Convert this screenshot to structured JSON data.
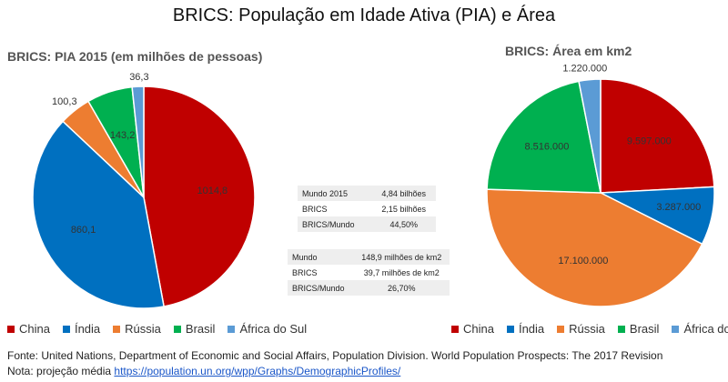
{
  "title": "BRICS: População em Idade Ativa (PIA) e Área",
  "colors": {
    "China": "#c00000",
    "Índia": "#0070c0",
    "Rússia": "#ed7d31",
    "Brasil": "#00b050",
    "África do Sul": "#5b9bd5"
  },
  "chart_data": [
    {
      "type": "pie",
      "title": "BRICS: PIA 2015 (em milhões de pessoas)",
      "categories": [
        "China",
        "Índia",
        "Rússia",
        "Brasil",
        "África do Sul"
      ],
      "values": [
        1014.8,
        860.1,
        100.3,
        143.2,
        36.3
      ],
      "labels": [
        "1014,8",
        "860,1",
        "100,3",
        "143,2",
        "36,3"
      ],
      "legend": "bottom"
    },
    {
      "type": "pie",
      "title": "BRICS: Área em km2",
      "categories": [
        "China",
        "Índia",
        "Rússia",
        "Brasil",
        "África do Sul"
      ],
      "values": [
        9597000,
        3287000,
        17100000,
        8516000,
        1220000
      ],
      "labels": [
        "9.597.000",
        "3.287.000",
        "17.100.000",
        "8.516.000",
        "1.220.000"
      ],
      "legend": "bottom"
    }
  ],
  "table_population": [
    {
      "label": "Mundo 2015",
      "value": "4,84 bilhões"
    },
    {
      "label": "BRICS",
      "value": "2,15 bilhões"
    },
    {
      "label": "BRICS/Mundo",
      "value": "44,50%"
    }
  ],
  "table_area": [
    {
      "label": "Mundo",
      "value": "148,9 milhões de km2"
    },
    {
      "label": "BRICS",
      "value": "39,7 milhões de km2"
    },
    {
      "label": "BRICS/Mundo",
      "value": "26,70%"
    }
  ],
  "footer": {
    "source": "Fonte: United Nations, Department of Economic and Social Affairs, Population Division. World Population Prospects: The 2017 Revision",
    "note_label": "Nota: projeção média",
    "note_link": "https://population.un.org/wpp/Graphs/DemographicProfiles/"
  }
}
